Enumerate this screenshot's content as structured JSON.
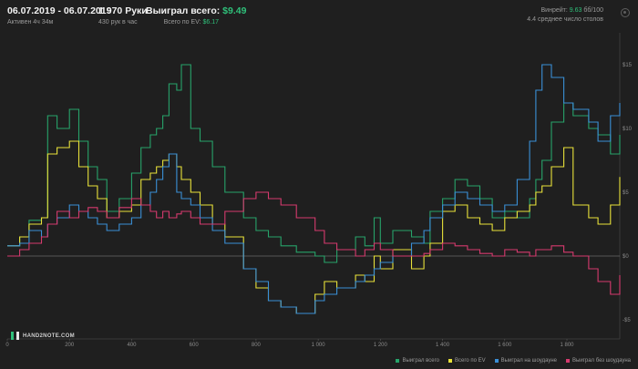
{
  "header": {
    "date_range": "06.07.2019 - 06.07.2019",
    "active": "Активен 4ч 34м",
    "hands": "1 970 Руки",
    "hands_per_hour": "430 рук в час",
    "won_label": "Выиграл всего:",
    "won_value": "$9.49",
    "ev_label": "Всего по EV:",
    "ev_value": "$6.17",
    "winrate_label": "Винрейт:",
    "winrate_value": "9.63",
    "winrate_unit": "бб/100",
    "tables": "4.4 среднее число столов"
  },
  "logo": {
    "text": "HAND2NOTE.COM"
  },
  "colors": {
    "green": "#27a36a",
    "yellow": "#e8e23a",
    "blue": "#3a8fd6",
    "pink": "#d63a6e",
    "axis": "#5a5a5a",
    "bg": "#1f1f1f"
  },
  "chart_data": {
    "type": "line",
    "xlim": [
      0,
      1970
    ],
    "ylim": [
      -6.5,
      17.5
    ],
    "x_ticks": [
      0,
      200,
      400,
      600,
      800,
      1000,
      1200,
      1400,
      1600,
      1800
    ],
    "x_tick_labels": [
      "0",
      "200",
      "400",
      "600",
      "800",
      "1 000",
      "1 200",
      "1 400",
      "1 600",
      "1 800"
    ],
    "y_ticks": [
      15,
      10,
      5,
      0,
      -5
    ],
    "y_tick_labels": [
      "$15",
      "$10",
      "$5",
      "$0",
      "-$5"
    ],
    "zero_line": 0,
    "legend_position": "bottom-right",
    "series": [
      {
        "name": "Выиграл всего",
        "color": "#27a36a",
        "x": [
          0,
          40,
          70,
          110,
          130,
          160,
          200,
          230,
          260,
          290,
          320,
          360,
          400,
          430,
          460,
          480,
          500,
          520,
          545,
          560,
          590,
          620,
          660,
          700,
          760,
          800,
          840,
          880,
          930,
          990,
          1020,
          1060,
          1120,
          1150,
          1180,
          1200,
          1240,
          1300,
          1340,
          1360,
          1400,
          1440,
          1480,
          1520,
          1560,
          1600,
          1640,
          1680,
          1700,
          1720,
          1750,
          1790,
          1820,
          1870,
          1900,
          1940,
          1970
        ],
        "y": [
          0.8,
          1.5,
          2.8,
          3.0,
          11.0,
          10.0,
          11.5,
          9.0,
          7.0,
          6.0,
          3.5,
          4.5,
          6.5,
          8.5,
          9.5,
          10.0,
          11.0,
          13.5,
          13.0,
          15.0,
          10.0,
          9.0,
          7.0,
          5.0,
          3.0,
          2.0,
          1.5,
          0.8,
          0.3,
          0.0,
          -0.5,
          0.5,
          1.5,
          0.8,
          3.0,
          1.0,
          2.0,
          1.5,
          1.0,
          3.5,
          4.5,
          6.0,
          5.5,
          4.5,
          3.0,
          3.5,
          3.0,
          4.5,
          6.0,
          7.5,
          10.5,
          12.0,
          11.0,
          10.0,
          9.5,
          8.0,
          9.5
        ]
      },
      {
        "name": "Всего по EV",
        "color": "#e8e23a",
        "x": [
          0,
          40,
          70,
          110,
          130,
          160,
          200,
          230,
          260,
          290,
          320,
          360,
          400,
          430,
          460,
          480,
          500,
          520,
          545,
          560,
          590,
          620,
          660,
          700,
          760,
          800,
          840,
          880,
          930,
          990,
          1020,
          1060,
          1120,
          1150,
          1180,
          1200,
          1240,
          1300,
          1340,
          1360,
          1400,
          1440,
          1480,
          1520,
          1560,
          1600,
          1640,
          1680,
          1700,
          1720,
          1750,
          1790,
          1820,
          1870,
          1900,
          1940,
          1970
        ],
        "y": [
          0.8,
          1.5,
          2.5,
          3.0,
          8.0,
          8.5,
          9.0,
          7.0,
          5.5,
          4.5,
          3.0,
          3.5,
          4.0,
          6.0,
          6.5,
          7.0,
          7.5,
          8.0,
          7.0,
          6.0,
          5.0,
          4.0,
          2.5,
          1.5,
          -1.0,
          -2.5,
          -3.5,
          -4.0,
          -4.5,
          -3.0,
          -2.0,
          -2.5,
          -1.5,
          -2.0,
          0.0,
          -1.0,
          0.5,
          -1.0,
          0.0,
          1.0,
          3.5,
          4.0,
          3.0,
          2.5,
          2.0,
          3.0,
          3.5,
          4.0,
          5.0,
          5.5,
          7.0,
          8.5,
          4.0,
          3.0,
          2.5,
          4.0,
          6.2
        ]
      },
      {
        "name": "Выиграл на шоудауне",
        "color": "#3a8fd6",
        "x": [
          0,
          40,
          70,
          110,
          130,
          160,
          200,
          230,
          260,
          290,
          320,
          360,
          400,
          430,
          460,
          480,
          500,
          520,
          545,
          560,
          590,
          620,
          660,
          700,
          760,
          800,
          840,
          880,
          930,
          990,
          1020,
          1060,
          1120,
          1150,
          1180,
          1200,
          1240,
          1300,
          1340,
          1360,
          1400,
          1440,
          1480,
          1520,
          1560,
          1600,
          1640,
          1680,
          1700,
          1720,
          1750,
          1790,
          1820,
          1870,
          1900,
          1940,
          1970
        ],
        "y": [
          0.8,
          1.0,
          2.0,
          1.5,
          2.5,
          3.0,
          4.0,
          3.5,
          3.0,
          2.5,
          2.0,
          2.5,
          3.0,
          4.0,
          5.0,
          6.0,
          7.0,
          8.0,
          5.0,
          4.5,
          4.0,
          3.0,
          2.0,
          1.0,
          -1.0,
          -2.0,
          -3.5,
          -4.0,
          -4.5,
          -3.5,
          -3.0,
          -2.5,
          -2.0,
          -1.5,
          -1.0,
          -0.5,
          0.0,
          1.0,
          2.0,
          3.0,
          4.0,
          5.0,
          4.5,
          4.0,
          3.5,
          4.0,
          6.0,
          9.0,
          13.0,
          15.0,
          14.0,
          12.0,
          11.5,
          10.5,
          9.0,
          11.0,
          12.0
        ]
      },
      {
        "name": "Выиграл без шоудауна",
        "color": "#d63a6e",
        "x": [
          0,
          40,
          70,
          110,
          130,
          160,
          200,
          230,
          260,
          290,
          320,
          360,
          400,
          430,
          460,
          480,
          500,
          520,
          545,
          560,
          590,
          620,
          660,
          700,
          760,
          800,
          840,
          880,
          930,
          990,
          1020,
          1060,
          1120,
          1150,
          1180,
          1200,
          1240,
          1300,
          1340,
          1360,
          1400,
          1440,
          1480,
          1520,
          1560,
          1600,
          1640,
          1680,
          1700,
          1720,
          1750,
          1790,
          1820,
          1870,
          1900,
          1940,
          1970
        ],
        "y": [
          0.0,
          0.5,
          1.0,
          1.5,
          2.5,
          3.5,
          3.0,
          3.5,
          3.8,
          3.5,
          3.0,
          3.8,
          4.5,
          4.0,
          3.5,
          3.0,
          3.5,
          3.0,
          3.3,
          3.5,
          3.0,
          2.5,
          2.5,
          3.5,
          4.5,
          5.0,
          4.5,
          4.0,
          3.0,
          2.0,
          1.0,
          0.5,
          0.0,
          0.5,
          1.0,
          0.5,
          0.0,
          0.0,
          0.2,
          0.5,
          1.0,
          0.8,
          0.5,
          0.2,
          0.0,
          0.5,
          0.3,
          0.0,
          0.5,
          0.5,
          0.8,
          0.3,
          0.0,
          -1.0,
          -2.0,
          -3.0,
          -1.5
        ]
      }
    ]
  }
}
